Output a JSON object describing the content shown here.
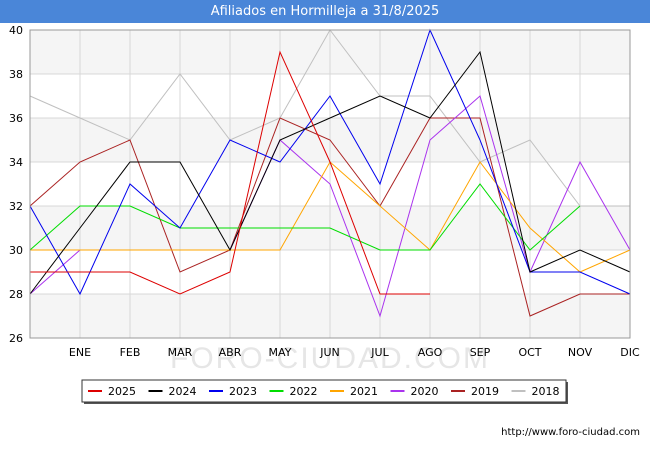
{
  "header": {
    "title": "Afiliados en Hormilleja a 31/8/2025"
  },
  "footer": {
    "url": "http://www.foro-ciudad.com"
  },
  "watermark": "FORO-CIUDAD.COM",
  "chart_data": {
    "type": "line",
    "title": "Afiliados en Hormilleja a 31/8/2025",
    "categories": [
      "",
      "ENE",
      "FEB",
      "MAR",
      "ABR",
      "MAY",
      "JUN",
      "JUL",
      "AGO",
      "SEP",
      "OCT",
      "NOV",
      "DIC"
    ],
    "ylim": [
      26,
      40
    ],
    "yticks": [
      26,
      28,
      30,
      32,
      34,
      36,
      38,
      40
    ],
    "grid": true,
    "legend_position": "bottom",
    "series": [
      {
        "name": "2025",
        "color": "#dd0000",
        "values": [
          29,
          29,
          29,
          28,
          29,
          39,
          34,
          28,
          28,
          null,
          null,
          null,
          null
        ]
      },
      {
        "name": "2024",
        "color": "#000000",
        "values": [
          28,
          31,
          34,
          34,
          30,
          35,
          36,
          37,
          36,
          39,
          29,
          30,
          29
        ]
      },
      {
        "name": "2023",
        "color": "#0000ee",
        "values": [
          32,
          28,
          33,
          31,
          35,
          34,
          37,
          33,
          40,
          35,
          29,
          29,
          28
        ]
      },
      {
        "name": "2022",
        "color": "#00dd00",
        "values": [
          30,
          32,
          32,
          31,
          31,
          31,
          31,
          30,
          30,
          33,
          30,
          32,
          null
        ]
      },
      {
        "name": "2021",
        "color": "#ffa500",
        "values": [
          30,
          30,
          30,
          30,
          30,
          30,
          34,
          32,
          30,
          34,
          31,
          29,
          30
        ]
      },
      {
        "name": "2020",
        "color": "#aa33ee",
        "values": [
          28,
          30,
          30,
          30,
          30,
          35,
          33,
          27,
          35,
          37,
          29,
          34,
          30
        ]
      },
      {
        "name": "2019",
        "color": "#aa2222",
        "values": [
          32,
          34,
          35,
          29,
          30,
          36,
          35,
          32,
          36,
          36,
          27,
          28,
          28
        ]
      },
      {
        "name": "2018",
        "color": "#c0c0c0",
        "values": [
          37,
          36,
          35,
          38,
          35,
          36,
          40,
          37,
          37,
          34,
          35,
          32,
          32
        ]
      }
    ]
  }
}
